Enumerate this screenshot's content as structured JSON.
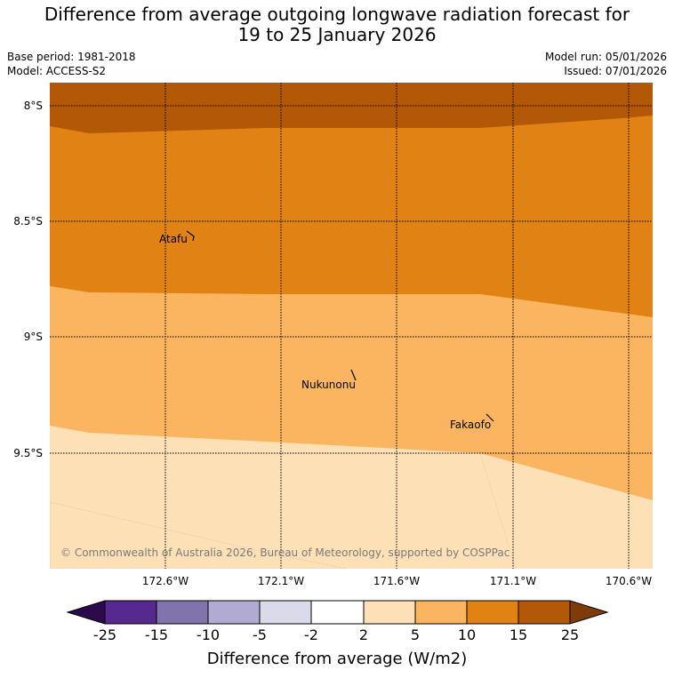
{
  "title_line1": "Difference from average outgoing longwave radiation forecast for",
  "title_line2": "19 to 25 January 2026",
  "base_period": "Base period: 1981-2018",
  "model": "Model: ACCESS-S2",
  "model_run": "Model run: 05/01/2026",
  "issued": "Issued: 07/01/2026",
  "copyright": "© Commonwealth of Australia 2026, Bureau of Meteorology, supported by COSPPac",
  "lat_labels": [
    "8°S",
    "8.5°S",
    "9°S",
    "9.5°S"
  ],
  "lon_labels": [
    "172.6°W",
    "172.1°W",
    "171.6°W",
    "171.1°W",
    "170.6°W"
  ],
  "places": [
    {
      "name": "Atafu"
    },
    {
      "name": "Nukunonu"
    },
    {
      "name": "Fakaofo"
    }
  ],
  "colorbar": {
    "label": "Difference from average (W/m2)",
    "ticks": [
      "-25",
      "-15",
      "-10",
      "-5",
      "-2",
      "2",
      "5",
      "10",
      "15",
      "25"
    ],
    "colors": {
      "extend_low": "#2d0a4e",
      "c1": "#562990",
      "c2": "#8174ad",
      "c3": "#b1aad2",
      "c4": "#dadaeb",
      "c5": "#ffffff",
      "c6": "#fee0b6",
      "c7": "#fbb560",
      "c8": "#e08214",
      "c9": "#b35806",
      "extend_high": "#7f3b08"
    }
  },
  "map_colors": {
    "band_top": "#b35806",
    "band_upper": "#e08214",
    "band_mid": "#fbb560",
    "band_low": "#fee0b6"
  }
}
